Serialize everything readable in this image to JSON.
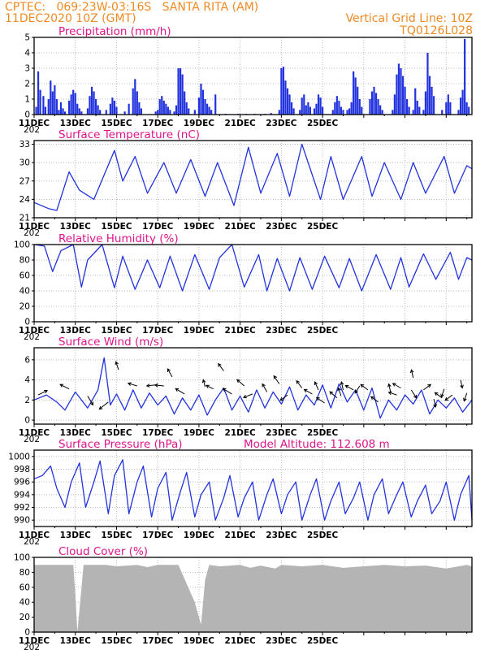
{
  "header": {
    "line1_left": "CPTEC:   069:23W-03:16S   SANTA RITA (AM)",
    "line2_left": "11DEC2020 10Z (GMT)",
    "line2_right": "Vertical Grid Line: 10Z",
    "line3_right": "TQ0126L028"
  },
  "colors": {
    "header": "#f08a24",
    "title": "#e0148a",
    "series": "#2233dd",
    "cloud": "#b4b4b4"
  },
  "x_axis": {
    "start": "11DEC2020 00Z",
    "end": "26DEC2020 06Z",
    "date_labels": [
      "11DEC",
      "13DEC",
      "15DEC",
      "17DEC",
      "19DEC",
      "21DEC",
      "23DEC",
      "25DEC"
    ],
    "year_stub": "202"
  },
  "chart_data": [
    {
      "id": "precipitation",
      "type": "bar",
      "title": "Precipitation (mm/h)",
      "ylim": [
        0,
        5
      ],
      "yticks": [
        0,
        1,
        2,
        3,
        4,
        5
      ],
      "grid": true,
      "bars": [
        [
          0.1,
          0.5
        ],
        [
          0.2,
          2.8
        ],
        [
          0.3,
          1.6
        ],
        [
          0.45,
          1.2
        ],
        [
          0.55,
          0.5
        ],
        [
          0.7,
          1.0
        ],
        [
          0.8,
          2.2
        ],
        [
          0.9,
          1.5
        ],
        [
          1.0,
          1.9
        ],
        [
          1.1,
          1.0
        ],
        [
          1.2,
          0.3
        ],
        [
          1.3,
          0.8
        ],
        [
          1.4,
          0.4
        ],
        [
          1.5,
          0.2
        ],
        [
          1.7,
          0.9
        ],
        [
          1.8,
          1.3
        ],
        [
          1.9,
          1.6
        ],
        [
          2.0,
          1.4
        ],
        [
          2.1,
          0.7
        ],
        [
          2.2,
          0.4
        ],
        [
          2.3,
          0.2
        ],
        [
          2.6,
          0.4
        ],
        [
          2.7,
          1.2
        ],
        [
          2.8,
          1.8
        ],
        [
          2.9,
          1.5
        ],
        [
          3.0,
          1.0
        ],
        [
          3.1,
          0.6
        ],
        [
          3.2,
          0.3
        ],
        [
          3.5,
          0.3
        ],
        [
          3.7,
          0.7
        ],
        [
          3.8,
          1.1
        ],
        [
          3.9,
          0.9
        ],
        [
          4.0,
          0.5
        ],
        [
          4.4,
          0.2
        ],
        [
          4.6,
          0.7
        ],
        [
          4.8,
          1.7
        ],
        [
          4.9,
          2.3
        ],
        [
          5.0,
          1.5
        ],
        [
          5.1,
          0.8
        ],
        [
          5.2,
          0.4
        ],
        [
          5.9,
          0.2
        ],
        [
          6.0,
          0.3
        ],
        [
          6.1,
          1.0
        ],
        [
          6.2,
          1.2
        ],
        [
          6.3,
          0.9
        ],
        [
          6.4,
          0.7
        ],
        [
          6.5,
          0.5
        ],
        [
          6.6,
          0.3
        ],
        [
          6.8,
          0.2
        ],
        [
          6.9,
          0.6
        ],
        [
          7.0,
          3.0
        ],
        [
          7.1,
          3.0
        ],
        [
          7.2,
          2.6
        ],
        [
          7.3,
          1.5
        ],
        [
          7.4,
          0.8
        ],
        [
          7.5,
          0.4
        ],
        [
          7.8,
          0.3
        ],
        [
          8.0,
          1.1
        ],
        [
          8.1,
          2.0
        ],
        [
          8.2,
          1.6
        ],
        [
          8.3,
          1.0
        ],
        [
          8.4,
          0.7
        ],
        [
          8.5,
          0.5
        ],
        [
          8.6,
          0.3
        ],
        [
          8.8,
          1.3
        ],
        [
          9.3,
          0.05
        ],
        [
          9.9,
          0.05
        ],
        [
          10.3,
          0.05
        ],
        [
          10.7,
          0.05
        ],
        [
          11.2,
          0.05
        ],
        [
          11.5,
          0.1
        ],
        [
          11.9,
          0.3
        ],
        [
          12.0,
          3.0
        ],
        [
          12.1,
          3.1
        ],
        [
          12.2,
          2.2
        ],
        [
          12.3,
          1.7
        ],
        [
          12.4,
          1.3
        ],
        [
          12.5,
          0.8
        ],
        [
          12.6,
          0.4
        ],
        [
          12.9,
          0.3
        ],
        [
          13.0,
          1.1
        ],
        [
          13.1,
          1.3
        ],
        [
          13.2,
          0.6
        ],
        [
          13.3,
          0.8
        ],
        [
          13.4,
          0.5
        ],
        [
          13.6,
          0.4
        ],
        [
          13.7,
          0.7
        ],
        [
          13.8,
          1.3
        ],
        [
          13.9,
          1.1
        ],
        [
          14.0,
          0.5
        ],
        [
          14.5,
          0.3
        ],
        [
          14.6,
          0.8
        ],
        [
          14.7,
          1.2
        ],
        [
          14.8,
          0.9
        ],
        [
          14.9,
          0.5
        ],
        [
          15.0,
          0.3
        ],
        [
          15.2,
          0.3
        ],
        [
          15.3,
          0.4
        ],
        [
          15.4,
          0.8
        ],
        [
          15.5,
          2.8
        ],
        [
          15.6,
          2.4
        ],
        [
          15.7,
          1.8
        ],
        [
          15.8,
          1.0
        ],
        [
          15.9,
          0.5
        ],
        [
          16.3,
          1.0
        ],
        [
          16.4,
          1.5
        ],
        [
          16.5,
          1.8
        ],
        [
          16.6,
          1.4
        ],
        [
          16.7,
          1.0
        ],
        [
          16.8,
          0.6
        ],
        [
          16.9,
          0.3
        ],
        [
          17.4,
          0.3
        ],
        [
          17.5,
          1.3
        ],
        [
          17.6,
          2.6
        ],
        [
          17.7,
          3.3
        ],
        [
          17.8,
          3.0
        ],
        [
          17.9,
          2.5
        ],
        [
          18.0,
          1.8
        ],
        [
          18.1,
          1.0
        ],
        [
          18.2,
          0.5
        ],
        [
          18.4,
          0.3
        ],
        [
          18.5,
          1.7
        ],
        [
          18.6,
          0.9
        ],
        [
          18.7,
          0.5
        ],
        [
          18.9,
          0.3
        ],
        [
          19.0,
          1.5
        ],
        [
          19.1,
          4.0
        ],
        [
          19.2,
          2.5
        ],
        [
          19.3,
          1.8
        ],
        [
          19.4,
          1.2
        ],
        [
          19.8,
          0.3
        ],
        [
          20.0,
          0.8
        ],
        [
          20.1,
          1.3
        ],
        [
          20.2,
          0.8
        ],
        [
          20.6,
          0.3
        ],
        [
          20.7,
          1.1
        ],
        [
          20.8,
          1.6
        ],
        [
          20.9,
          4.9
        ],
        [
          21.0,
          0.8
        ],
        [
          21.1,
          0.5
        ]
      ]
    },
    {
      "id": "temperature",
      "type": "line",
      "title": "Surface Temperature (nC)",
      "ylim": [
        21,
        33.6
      ],
      "yticks": [
        21,
        24,
        27,
        30,
        33
      ],
      "grid": true,
      "x": [
        0,
        0.7,
        1.1,
        1.7,
        2.2,
        2.9,
        3.9,
        4.3,
        4.9,
        5.5,
        6.3,
        6.9,
        7.6,
        8.3,
        8.9,
        9.7,
        10.4,
        11.0,
        11.8,
        12.4,
        13.0,
        13.9,
        14.4,
        15.0,
        15.9,
        16.4,
        17.0,
        17.8,
        18.4,
        19.0,
        19.9,
        20.4,
        21.0,
        21.25
      ],
      "y": [
        23.5,
        22.5,
        22.2,
        28.5,
        25.5,
        24.0,
        32.0,
        27.0,
        31.0,
        25.0,
        30.0,
        25.0,
        30.5,
        24.5,
        30.0,
        23.0,
        32.5,
        25.0,
        31.5,
        24.5,
        33.0,
        24.0,
        31.0,
        24.0,
        31.0,
        24.5,
        30.0,
        24.0,
        30.0,
        25.0,
        31.0,
        25.0,
        29.5,
        29.0
      ]
    },
    {
      "id": "humidity",
      "type": "line",
      "title": "Relative Humidity (%)",
      "ylim": [
        0,
        100
      ],
      "yticks": [
        0,
        20,
        40,
        60,
        80,
        100
      ],
      "grid": true,
      "x": [
        0,
        0.5,
        0.9,
        1.3,
        1.9,
        2.3,
        2.6,
        3.3,
        3.9,
        4.3,
        4.9,
        5.5,
        6.1,
        6.6,
        7.2,
        7.8,
        8.5,
        9.0,
        9.6,
        10.2,
        10.9,
        11.3,
        11.8,
        12.4,
        12.9,
        13.5,
        14.1,
        14.8,
        15.3,
        15.9,
        16.6,
        17.3,
        17.8,
        18.2,
        18.9,
        19.5,
        20.2,
        20.6,
        21.0,
        21.25
      ],
      "y": [
        100,
        98,
        65,
        92,
        100,
        45,
        80,
        100,
        44,
        85,
        42,
        80,
        44,
        85,
        40,
        87,
        42,
        83,
        100,
        45,
        87,
        40,
        82,
        40,
        83,
        42,
        85,
        44,
        82,
        40,
        87,
        42,
        83,
        45,
        88,
        55,
        90,
        55,
        83,
        80
      ]
    },
    {
      "id": "wind",
      "type": "line",
      "title": "Surface Wind (m/s)",
      "ylim": [
        -0.4,
        7.2
      ],
      "yticks": [
        0,
        2,
        4,
        6
      ],
      "grid": true,
      "x": [
        0,
        0.6,
        1.1,
        1.5,
        2.0,
        2.6,
        3.1,
        3.4,
        3.7,
        4.0,
        4.4,
        4.8,
        5.2,
        5.6,
        6.0,
        6.4,
        6.8,
        7.2,
        7.6,
        8.0,
        8.4,
        8.8,
        9.2,
        9.6,
        10.0,
        10.4,
        10.8,
        11.2,
        11.6,
        12.0,
        12.4,
        12.8,
        13.2,
        13.6,
        14.0,
        14.4,
        14.8,
        15.2,
        15.6,
        16.0,
        16.4,
        16.8,
        17.2,
        17.6,
        18.0,
        18.4,
        18.8,
        19.2,
        19.6,
        20.0,
        20.4,
        20.8,
        21.25
      ],
      "y": [
        2.0,
        2.5,
        1.8,
        1.0,
        2.8,
        1.2,
        3.0,
        6.2,
        1.5,
        2.6,
        1.0,
        3.0,
        1.2,
        2.7,
        1.5,
        2.4,
        0.6,
        2.2,
        1.0,
        2.5,
        0.5,
        2.0,
        3.2,
        1.0,
        2.4,
        0.8,
        3.0,
        1.2,
        2.8,
        1.6,
        3.3,
        1.0,
        2.5,
        1.5,
        3.5,
        1.2,
        3.6,
        1.8,
        3.0,
        1.0,
        3.2,
        0.2,
        2.0,
        1.0,
        2.5,
        1.6,
        3.0,
        0.6,
        2.0,
        1.2,
        2.2,
        0.8,
        2.0
      ],
      "arrows": [
        [
          0.2,
          2.5,
          1,
          0.5
        ],
        [
          1.7,
          3.1,
          -1,
          0.5
        ],
        [
          2.6,
          2.4,
          0.6,
          -1
        ],
        [
          3.6,
          1.8,
          -1,
          -0.8
        ],
        [
          4.1,
          5.0,
          -0.3,
          0.9
        ],
        [
          5.0,
          3.4,
          -1,
          0.3
        ],
        [
          5.9,
          3.5,
          -1,
          -0.1
        ],
        [
          6.3,
          3.4,
          -1,
          0.1
        ],
        [
          6.7,
          4.3,
          -0.5,
          0.9
        ],
        [
          7.3,
          2.6,
          -1,
          0.6
        ],
        [
          8.3,
          3.3,
          -0.2,
          0.8
        ],
        [
          8.7,
          3.1,
          -0.8,
          0.4
        ],
        [
          9.2,
          4.9,
          -0.6,
          0.8
        ],
        [
          9.6,
          2.6,
          -1,
          0.6
        ],
        [
          10.2,
          3.4,
          -0.8,
          0.7
        ],
        [
          10.6,
          2.6,
          -1,
          -0.4
        ],
        [
          11.3,
          2.8,
          -0.5,
          0.9
        ],
        [
          11.9,
          3.6,
          -0.6,
          0.9
        ],
        [
          12.3,
          2.5,
          -0.8,
          -0.6
        ],
        [
          13.0,
          3.2,
          -0.6,
          0.8
        ],
        [
          13.5,
          2.6,
          -0.9,
          0.5
        ],
        [
          13.8,
          3.0,
          -0.4,
          0.9
        ],
        [
          14.1,
          1.7,
          -0.9,
          0.6
        ],
        [
          14.7,
          2.2,
          -0.8,
          0.7
        ],
        [
          14.9,
          2.4,
          -0.3,
          0.9
        ],
        [
          15.0,
          3.0,
          -0.2,
          0.9
        ],
        [
          15.5,
          3.0,
          -0.9,
          0.5
        ],
        [
          15.8,
          3.4,
          -0.5,
          -0.8
        ],
        [
          16.2,
          3.0,
          -0.8,
          0.6
        ],
        [
          16.7,
          1.8,
          -0.8,
          0.6
        ],
        [
          17.3,
          2.8,
          -0.2,
          0.9
        ],
        [
          17.6,
          2.5,
          -0.9,
          0.3
        ],
        [
          17.8,
          3.2,
          -0.9,
          0.5
        ],
        [
          18.3,
          3.0,
          0.6,
          -0.9
        ],
        [
          18.4,
          4.2,
          -0.2,
          0.9
        ],
        [
          18.9,
          3.0,
          0.8,
          0.6
        ],
        [
          19.4,
          2.1,
          0.2,
          -0.9
        ],
        [
          19.8,
          2.2,
          -0.8,
          0.6
        ],
        [
          19.9,
          3.1,
          -0.3,
          -0.9
        ],
        [
          20.3,
          2.5,
          -0.8,
          -0.6
        ],
        [
          20.7,
          4.0,
          0.2,
          -0.9
        ],
        [
          21.0,
          2.7,
          -0.3,
          -0.9
        ]
      ]
    },
    {
      "id": "pressure",
      "type": "line",
      "title": "Surface Pressure (hPa)",
      "note": "Model Altitude: 112.608 m",
      "ylim": [
        989,
        1001
      ],
      "yticks": [
        990,
        992,
        994,
        996,
        998,
        1000
      ],
      "grid": true,
      "x": [
        0,
        0.4,
        0.8,
        1.1,
        1.5,
        1.8,
        2.2,
        2.5,
        2.9,
        3.2,
        3.6,
        3.9,
        4.3,
        4.6,
        5.0,
        5.3,
        5.7,
        6.0,
        6.4,
        6.7,
        7.1,
        7.4,
        7.8,
        8.1,
        8.5,
        8.8,
        9.2,
        9.5,
        9.9,
        10.2,
        10.6,
        10.9,
        11.3,
        11.6,
        12.0,
        12.3,
        12.7,
        13.0,
        13.4,
        13.7,
        14.1,
        14.4,
        14.8,
        15.1,
        15.5,
        15.8,
        16.2,
        16.5,
        16.9,
        17.2,
        17.6,
        17.9,
        18.3,
        18.6,
        19.0,
        19.3,
        19.7,
        20.0,
        20.4,
        20.7,
        21.1,
        21.25
      ],
      "y": [
        996.5,
        997,
        998.5,
        995,
        992,
        996,
        999,
        992,
        996,
        999.3,
        991,
        997,
        999.5,
        991,
        996,
        998.5,
        990.5,
        995,
        997.5,
        990,
        994.5,
        997.5,
        990.5,
        994,
        996,
        990,
        993.5,
        997,
        990.5,
        993.5,
        996,
        990,
        994,
        996.5,
        991,
        994,
        996,
        990,
        994,
        996.5,
        990,
        993,
        996,
        991,
        993.5,
        996,
        990,
        994,
        996.5,
        991,
        994,
        996,
        990.5,
        993,
        995.5,
        991,
        993,
        996,
        990,
        994,
        997,
        990
      ]
    },
    {
      "id": "cloud",
      "type": "area",
      "title": "Cloud Cover (%)",
      "ylim": [
        0,
        100
      ],
      "yticks": [
        0,
        20,
        40,
        60,
        80,
        100
      ],
      "grid": true,
      "x": [
        0,
        1.9,
        2.0,
        2.1,
        2.4,
        3.5,
        4.0,
        5.0,
        5.5,
        6.0,
        7.0,
        7.8,
        8.1,
        8.3,
        8.5,
        9.0,
        10.0,
        10.5,
        11.0,
        11.7,
        12.0,
        13.0,
        14.0,
        15.0,
        16.0,
        17.0,
        18.0,
        19.0,
        20.0,
        21.0,
        21.25
      ],
      "y": [
        90,
        90,
        50,
        0,
        90,
        90,
        88,
        90,
        87,
        90,
        90,
        40,
        10,
        70,
        90,
        88,
        90,
        86,
        89,
        85,
        90,
        88,
        90,
        86,
        88,
        90,
        88,
        89,
        85,
        90,
        88
      ]
    }
  ]
}
